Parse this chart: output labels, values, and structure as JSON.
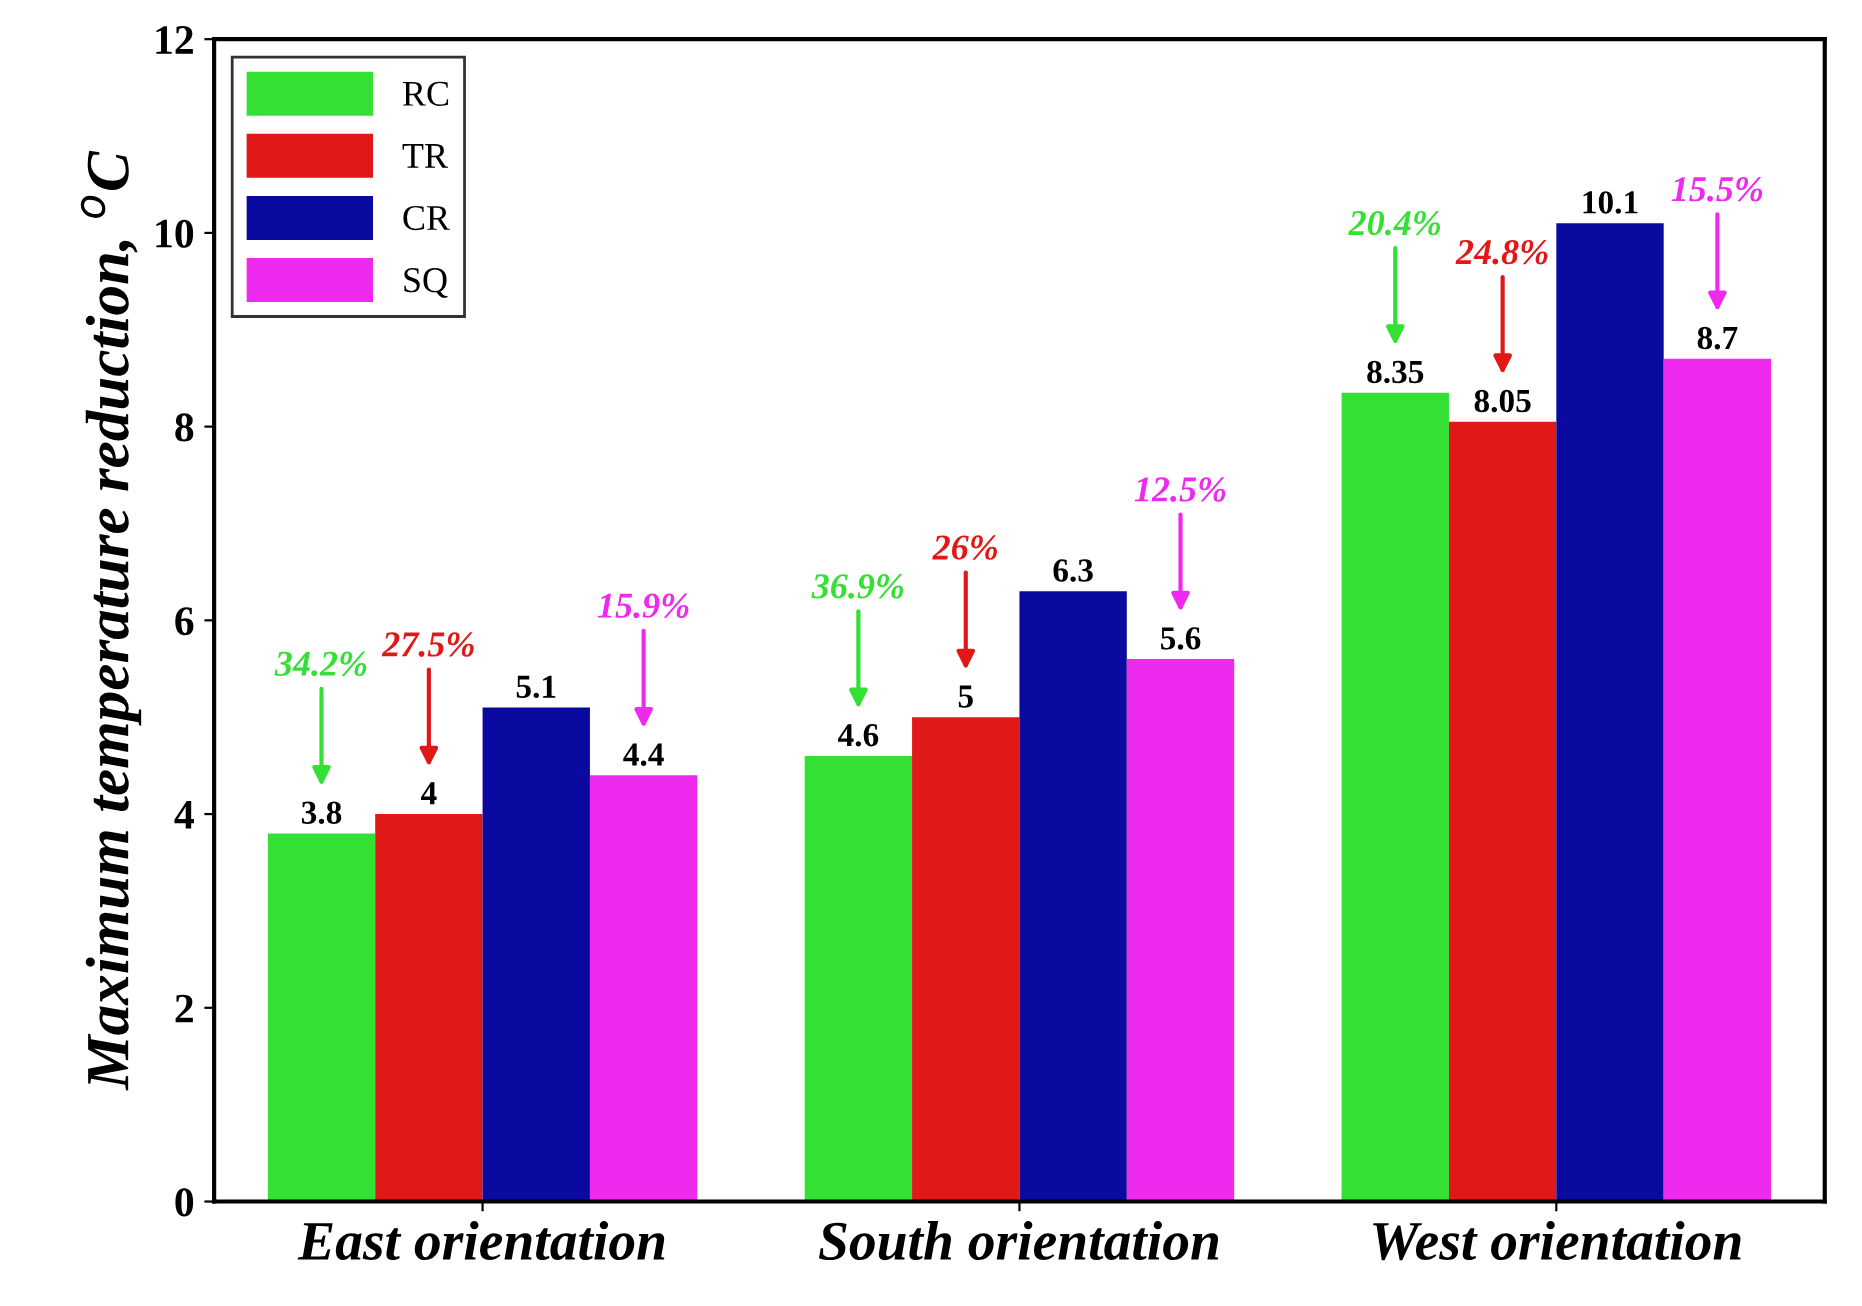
{
  "chart_data": {
    "type": "bar",
    "ylabel": "Maximum temperature reduction, $^{o}$C",
    "categories": [
      "East orientation",
      "South orientation",
      "West orientation"
    ],
    "series": [
      {
        "name": "RC",
        "color": "#33e033",
        "values": [
          3.8,
          4.6,
          8.35
        ]
      },
      {
        "name": "TR",
        "color": "#e01818",
        "values": [
          4,
          5,
          8.05
        ]
      },
      {
        "name": "CR",
        "color": "#0a0aa0",
        "values": [
          5.1,
          6.3,
          10.1
        ]
      },
      {
        "name": "SQ",
        "color": "#ee2aee",
        "values": [
          4.4,
          5.6,
          8.7
        ]
      }
    ],
    "ylim": [
      0,
      12
    ],
    "yticks": [
      0,
      2,
      4,
      6,
      8,
      10,
      12
    ],
    "data_labels": true,
    "legend": "top left",
    "grid": false,
    "annotations": [
      "34.2%",
      "27.5%",
      "15.9%",
      "36.9%",
      "26%",
      "12.5%",
      "20.4%",
      "24.8%",
      "15.5%"
    ]
  }
}
